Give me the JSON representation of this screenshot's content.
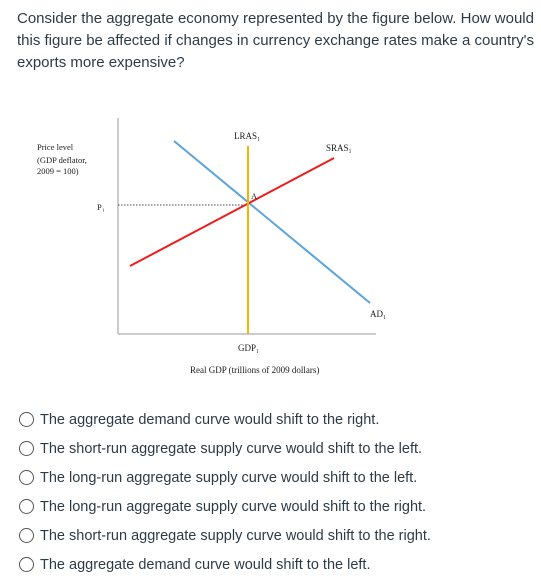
{
  "question": {
    "text": "Consider the aggregate economy represented by the figure below.  How would this figure be affected if changes in currency exchange rates make a country's exports more expensive?"
  },
  "figure": {
    "y_axis_label": [
      "Price level",
      "(GDP deflator,",
      "2009 = 100)"
    ],
    "x_axis_label": "Real GDP (trillions of 2009 dollars)",
    "p1_label": "P₁",
    "gdp1_label": "GDP₁",
    "lras_label": "LRAS₁",
    "sras_label": "SRAS₁",
    "ad_label": "AD₁",
    "point_label": "A",
    "colors": {
      "lras": "#f5b400",
      "sras": "#ee1c1c",
      "ad": "#5ba3dd",
      "axis": "#999999"
    }
  },
  "options": [
    {
      "label": "The aggregate demand curve would shift to the right."
    },
    {
      "label": "The short-run aggregate supply curve would shift to the left."
    },
    {
      "label": "The long-run aggregate supply curve would shift to the left."
    },
    {
      "label": "The long-run aggregate supply curve would shift to the right."
    },
    {
      "label": "The short-run aggregate supply curve would shift to the right."
    },
    {
      "label": "The aggregate demand curve would shift to the left."
    }
  ]
}
